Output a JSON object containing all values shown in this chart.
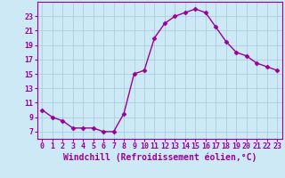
{
  "x": [
    0,
    1,
    2,
    3,
    4,
    5,
    6,
    7,
    8,
    9,
    10,
    11,
    12,
    13,
    14,
    15,
    16,
    17,
    18,
    19,
    20,
    21,
    22,
    23
  ],
  "y": [
    10,
    9,
    8.5,
    7.5,
    7.5,
    7.5,
    7,
    7,
    9.5,
    15,
    15.5,
    20,
    22,
    23,
    23.5,
    24,
    23.5,
    21.5,
    19.5,
    18,
    17.5,
    16.5,
    16,
    15.5
  ],
  "line_color": "#990099",
  "marker": "D",
  "marker_size": 2.5,
  "bg_color": "#cce9f5",
  "grid_color": "#aacfe0",
  "xlabel": "Windchill (Refroidissement éolien,°C)",
  "xlabel_color": "#990099",
  "xlim": [
    -0.5,
    23.5
  ],
  "ylim": [
    6.0,
    25.0
  ],
  "xticks": [
    0,
    1,
    2,
    3,
    4,
    5,
    6,
    7,
    8,
    9,
    10,
    11,
    12,
    13,
    14,
    15,
    16,
    17,
    18,
    19,
    20,
    21,
    22,
    23
  ],
  "yticks": [
    7,
    9,
    11,
    13,
    15,
    17,
    19,
    21,
    23
  ],
  "tick_color": "#990099",
  "tick_fontsize": 6,
  "xlabel_fontsize": 7,
  "spine_color": "#990099",
  "linewidth": 1.0
}
